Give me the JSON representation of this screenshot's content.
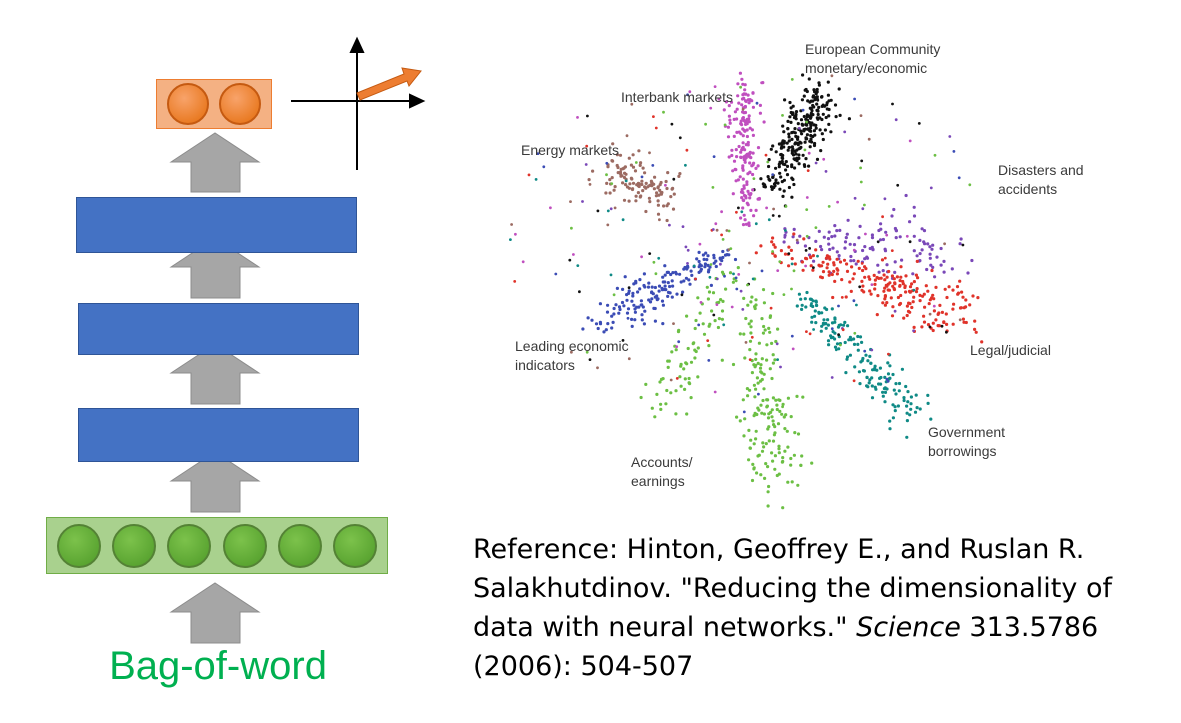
{
  "autoencoder": {
    "output_label": "Bag-of-word",
    "code_nodes": 2,
    "input_nodes": 6,
    "hidden_layers": 3,
    "colors": {
      "hidden": "#4472c4",
      "arrow": "#a6a6a6",
      "code_node": "#e46c0a",
      "input_node": "#5fa83a",
      "label": "#00b050"
    }
  },
  "axes_icon": {
    "vector_color": "#ed7d31"
  },
  "embedding": {
    "clusters": [
      {
        "id": "european",
        "label": "European Community\nmonetary/economic",
        "color": "#111111"
      },
      {
        "id": "interbank",
        "label": "Interbank markets",
        "color": "#c04fbf"
      },
      {
        "id": "energy",
        "label": "Energy markets",
        "color": "#9c6b62"
      },
      {
        "id": "disasters",
        "label": "Disasters and\naccidents",
        "color": "#7a48b8"
      },
      {
        "id": "leading",
        "label": "Leading economic\nindicators",
        "color": "#3b4cb5"
      },
      {
        "id": "legal",
        "label": "Legal/judicial",
        "color": "#e0332a"
      },
      {
        "id": "government",
        "label": "Government\nborrowings",
        "color": "#0f8a86"
      },
      {
        "id": "accounts",
        "label": "Accounts/\nearnings",
        "color": "#6cbf44"
      }
    ]
  },
  "reference": {
    "prefix": "Reference: Hinton, Geoffrey E., and Ruslan R. Salakhutdinov. \"Reducing the dimensionality of data with neural networks.\" ",
    "journal": "Science",
    "suffix": " 313.5786 (2006): 504-507"
  }
}
